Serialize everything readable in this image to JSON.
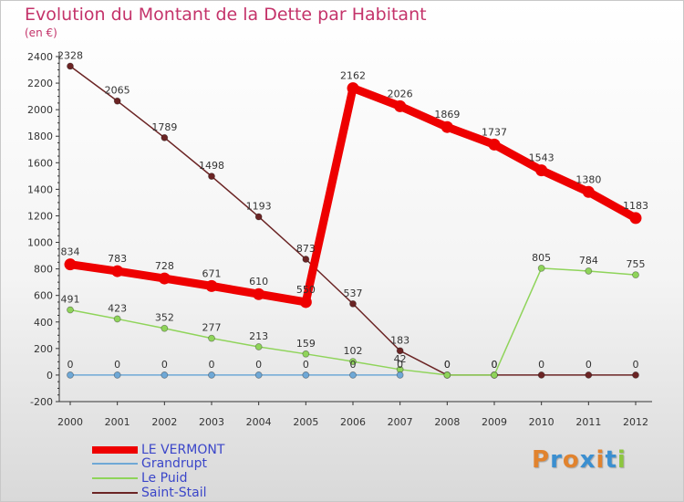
{
  "header": {
    "title": "Evolution du Montant de la Dette par Habitant",
    "subtitle": "(en €)"
  },
  "colors": {
    "title": "#c4336a",
    "legend_text": "#3b46c9",
    "axis": "#333333"
  },
  "logo": {
    "text": "Proxiti",
    "letter_colors": [
      "#e1832e",
      "#3b8fd0",
      "#e1832e",
      "#3b8fd0",
      "#e1832e",
      "#3b8fd0",
      "#8dc63f"
    ]
  },
  "chart_data": {
    "type": "line",
    "title": "Evolution du Montant de la Dette par Habitant",
    "subtitle": "(en €)",
    "xlabel": "",
    "ylabel": "",
    "x": [
      "2000",
      "2001",
      "2002",
      "2003",
      "2004",
      "2005",
      "2006",
      "2007",
      "2008",
      "2009",
      "2010",
      "2011",
      "2012"
    ],
    "ylim": [
      -200,
      2400
    ],
    "yticks": [
      -200,
      0,
      200,
      400,
      600,
      800,
      1000,
      1200,
      1400,
      1600,
      1800,
      2000,
      2200,
      2400
    ],
    "grid": false,
    "legend_position": "bottom-left",
    "series": [
      {
        "name": "LE VERMONT",
        "color": "#ee0000",
        "values": [
          834,
          783,
          728,
          671,
          610,
          550,
          2162,
          2026,
          1869,
          1737,
          1543,
          1380,
          1183
        ],
        "labels": [
          "834",
          "783",
          "728",
          "671",
          "610",
          "550",
          "2162",
          "2026",
          "1869",
          "1737",
          "1543",
          "1380",
          "1183"
        ]
      },
      {
        "name": "Grandrupt",
        "color": "#6fa8d6",
        "values": [
          0,
          0,
          0,
          0,
          0,
          0,
          0,
          0,
          null,
          null,
          null,
          null,
          null
        ],
        "labels": [
          "0",
          "0",
          "0",
          "0",
          "0",
          "0",
          "0",
          "0",
          "",
          "",
          "",
          "",
          ""
        ]
      },
      {
        "name": "Le Puid",
        "color": "#8fd45a",
        "values": [
          491,
          423,
          352,
          277,
          213,
          159,
          102,
          42,
          0,
          0,
          805,
          784,
          755
        ],
        "labels": [
          "491",
          "423",
          "352",
          "277",
          "213",
          "159",
          "102",
          "42",
          "0",
          "0",
          "805",
          "784",
          "755"
        ]
      },
      {
        "name": "Saint-Stail",
        "color": "#6b2424",
        "values": [
          2328,
          2065,
          1789,
          1498,
          1193,
          873,
          537,
          183,
          0,
          0,
          0,
          0,
          0
        ],
        "labels": [
          "2328",
          "2065",
          "1789",
          "1498",
          "1193",
          "873",
          "537",
          "183",
          "0",
          "0",
          "0",
          "0",
          "0"
        ]
      }
    ]
  }
}
